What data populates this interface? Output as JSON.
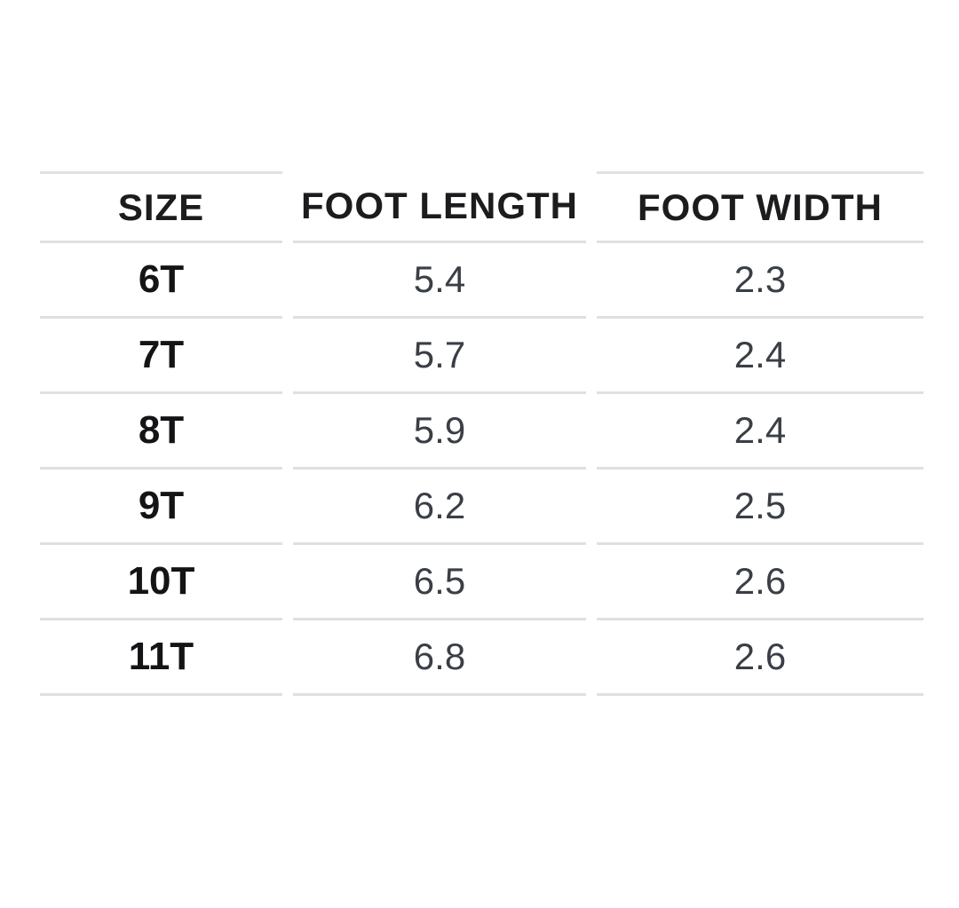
{
  "chart_data": {
    "type": "table",
    "title": "",
    "columns": [
      "SIZE",
      "FOOT LENGTH",
      "FOOT WIDTH"
    ],
    "rows": [
      [
        "6T",
        "5.4",
        "2.3"
      ],
      [
        "7T",
        "5.7",
        "2.4"
      ],
      [
        "8T",
        "5.9",
        "2.4"
      ],
      [
        "9T",
        "6.2",
        "2.5"
      ],
      [
        "10T",
        "6.5",
        "2.6"
      ],
      [
        "11T",
        "6.8",
        "2.6"
      ]
    ],
    "layout_hints": {
      "grid": "horizontal rules only, per-column segments with gaps",
      "header_style": "bold uppercase",
      "alignment": "center"
    }
  },
  "colors": {
    "background": "#ffffff",
    "rule": "#e0e0e0",
    "header_text": "#1c1c1e",
    "label_text": "#141417",
    "value_text": "#3a3e45"
  }
}
